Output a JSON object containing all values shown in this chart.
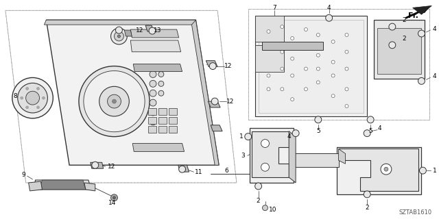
{
  "background_color": "#ffffff",
  "diagram_code": "SZTAB1610",
  "fr_label": "Fr.",
  "line_color": "#333333",
  "light_line_color": "#aaaaaa",
  "dash_color": "#999999"
}
